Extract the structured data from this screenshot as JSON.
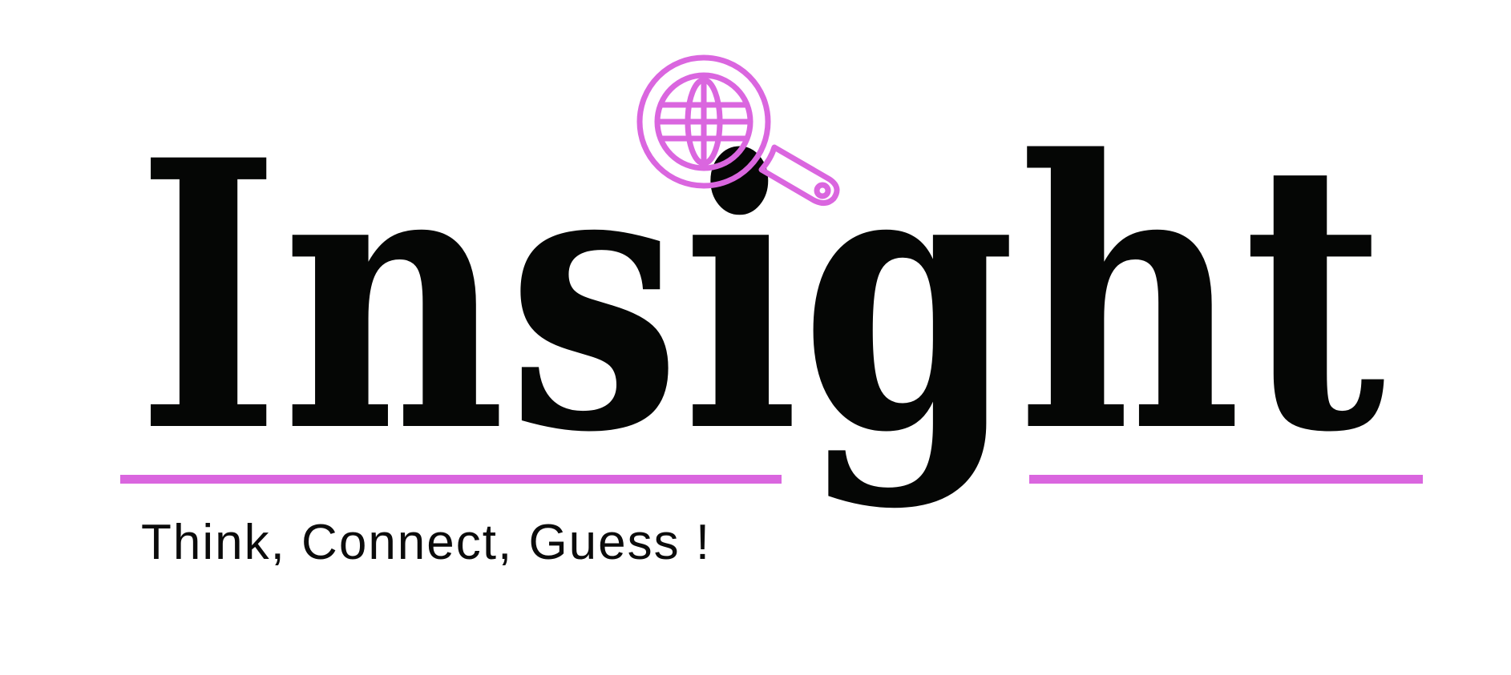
{
  "logo": {
    "word": "Insight",
    "tagline": "Think, Connect, Guess !",
    "icon": "magnifier-globe-icon",
    "colors": {
      "text": "#050605",
      "accent": "#DA66DF",
      "background": "#FFFFFF"
    }
  }
}
